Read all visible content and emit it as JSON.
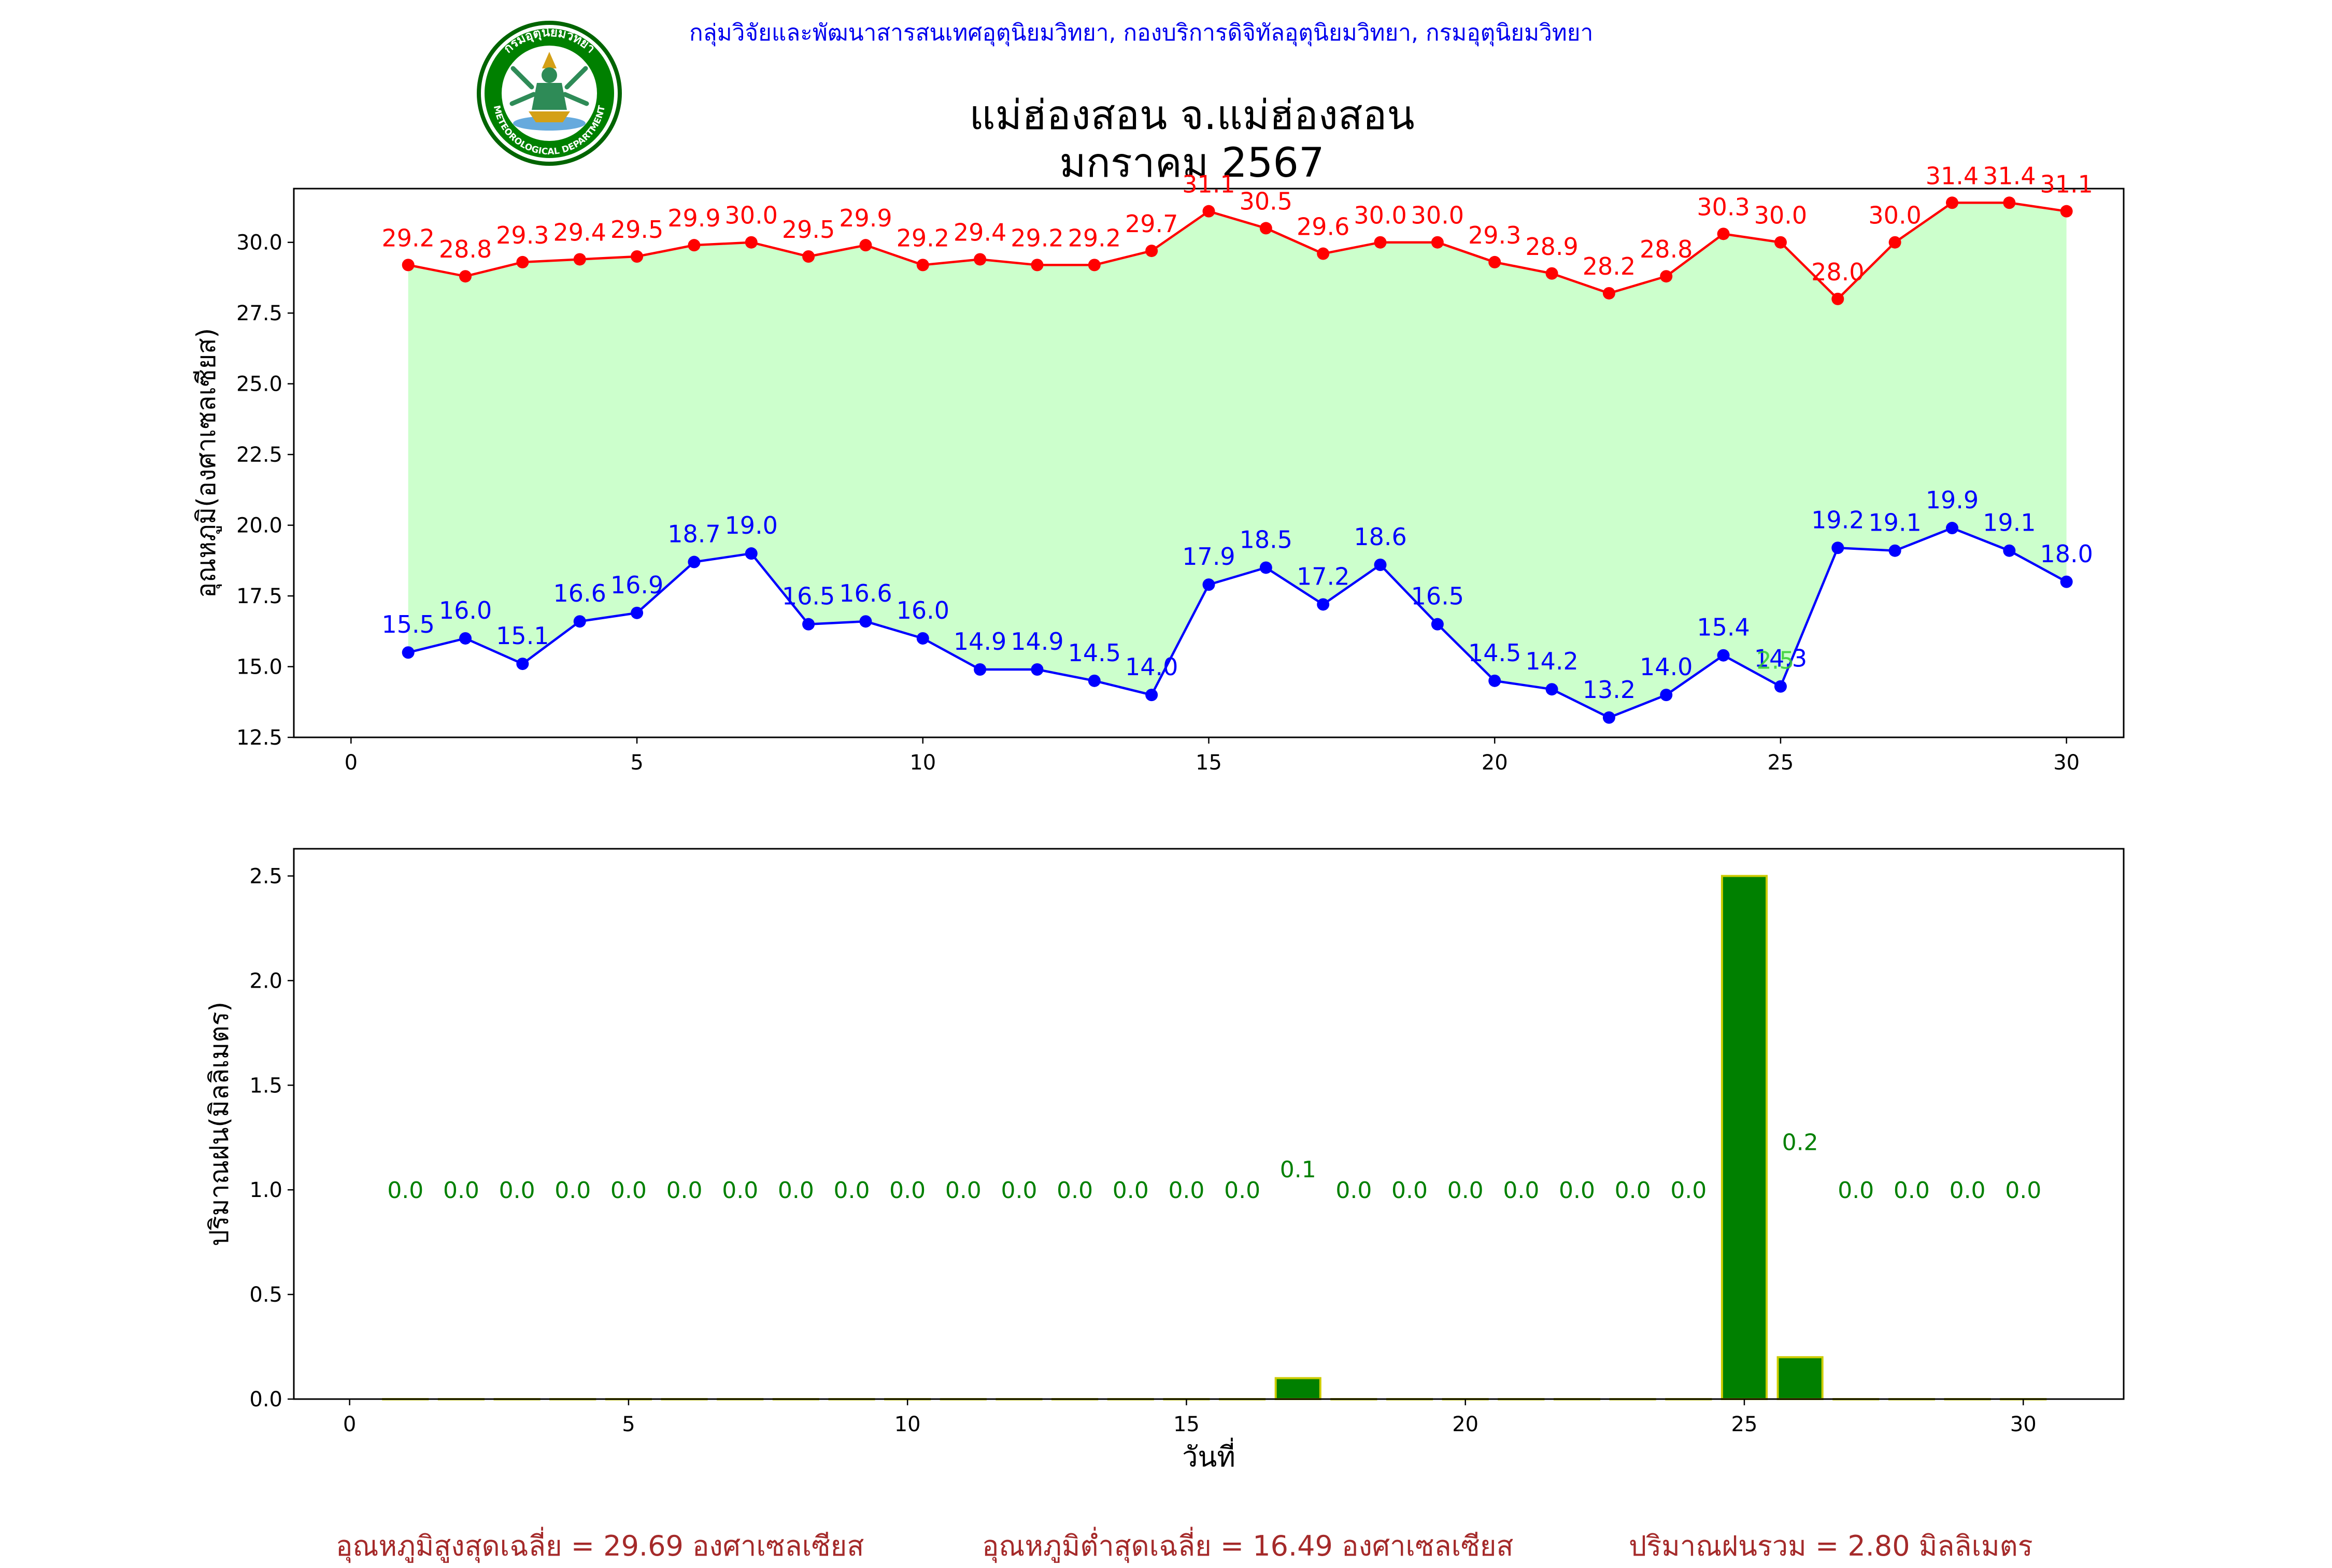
{
  "header": {
    "department_line": "กลุ่มวิจัยและพัฒนาสารสนเทศอุตุนิยมวิทยา, กองบริการดิจิทัลอุตุนิยมวิทยา, กรมอุตุนิยมวิทยา",
    "logo_text_top": "กรมอุตุนิยมวิทยา",
    "logo_text_bottom": "METEOROLOGICAL DEPARTMENT"
  },
  "title": {
    "line1": "แม่ฮ่องสอน จ.แม่ฮ่องสอน",
    "line2": "มกราคม 2567"
  },
  "colors": {
    "max": "#ff0000",
    "min": "#0000ff",
    "band": "#ccffcc",
    "rain": "#008000",
    "rain_edge": "#cccc00",
    "stat": "#a52a2a"
  },
  "chart_data": [
    {
      "type": "line",
      "xlabel": "",
      "ylabel": "อุณหภูมิ(องศาเซลเซียส)",
      "xlim": [
        -1,
        31
      ],
      "ylim": [
        12.5,
        31.9
      ],
      "xticks": [
        0,
        5,
        10,
        15,
        20,
        25,
        30
      ],
      "yticks": [
        12.5,
        15.0,
        17.5,
        20.0,
        22.5,
        25.0,
        27.5,
        30.0
      ],
      "x": [
        1,
        2,
        3,
        4,
        5,
        6,
        7,
        8,
        9,
        10,
        11,
        12,
        13,
        14,
        15,
        16,
        17,
        18,
        19,
        20,
        21,
        22,
        23,
        24,
        25,
        26,
        27,
        28,
        29,
        30
      ],
      "series": [
        {
          "values": [
            29.2,
            28.8,
            29.3,
            29.4,
            29.5,
            29.9,
            30.0,
            29.5,
            29.9,
            29.2,
            29.4,
            29.2,
            29.2,
            29.7,
            31.1,
            30.5,
            29.6,
            30.0,
            30.0,
            29.3,
            28.9,
            28.2,
            28.8,
            30.3,
            30.0,
            28.0,
            30.0,
            31.4,
            31.4,
            31.1
          ]
        },
        {
          "values": [
            15.5,
            16.0,
            15.1,
            16.6,
            16.9,
            18.7,
            19.0,
            16.5,
            16.6,
            16.0,
            14.9,
            14.9,
            14.5,
            14.0,
            17.9,
            18.5,
            17.2,
            18.6,
            16.5,
            14.5,
            14.2,
            13.2,
            14.0,
            15.4,
            14.3,
            19.2,
            19.1,
            19.9,
            19.1,
            18.0
          ]
        }
      ],
      "annotations": [
        {
          "x": 25,
          "y": 15.0,
          "text": "2.5"
        }
      ]
    },
    {
      "type": "bar",
      "xlabel": "วันที่",
      "ylabel": "ปริมาณฝน(มิลลิเมตร)",
      "xlim": [
        -1,
        31.8
      ],
      "ylim": [
        0,
        2.63
      ],
      "xticks": [
        0,
        5,
        10,
        15,
        20,
        25,
        30
      ],
      "yticks": [
        0.0,
        0.5,
        1.0,
        1.5,
        2.0,
        2.5
      ],
      "x": [
        1,
        2,
        3,
        4,
        5,
        6,
        7,
        8,
        9,
        10,
        11,
        12,
        13,
        14,
        15,
        16,
        17,
        18,
        19,
        20,
        21,
        22,
        23,
        24,
        25,
        26,
        27,
        28,
        29,
        30
      ],
      "values": [
        0.0,
        0.0,
        0.0,
        0.0,
        0.0,
        0.0,
        0.0,
        0.0,
        0.0,
        0.0,
        0.0,
        0.0,
        0.0,
        0.0,
        0.0,
        0.0,
        0.1,
        0.0,
        0.0,
        0.0,
        0.0,
        0.0,
        0.0,
        0.0,
        2.5,
        0.2,
        0.0,
        0.0,
        0.0,
        0.0
      ],
      "labels": [
        "0.0",
        "0.0",
        "0.0",
        "0.0",
        "0.0",
        "0.0",
        "0.0",
        "0.0",
        "0.0",
        "0.0",
        "0.0",
        "0.0",
        "0.0",
        "0.0",
        "0.0",
        "0.0",
        "0.1",
        "0.0",
        "0.0",
        "0.0",
        "0.0",
        "0.0",
        "0.0",
        "0.0",
        "",
        "0.2",
        "0.0",
        "0.0",
        "0.0",
        "0.0"
      ]
    }
  ],
  "stats": {
    "avg_max": "อุณหภูมิสูงสุดเฉลี่ย = 29.69 องศาเซลเซียส",
    "avg_min": "อุณหภูมิต่ำสุดเฉลี่ย = 16.49 องศาเซลเซียส",
    "total_rain": "ปริมาณฝนรวม = 2.80 มิลลิเมตร"
  }
}
